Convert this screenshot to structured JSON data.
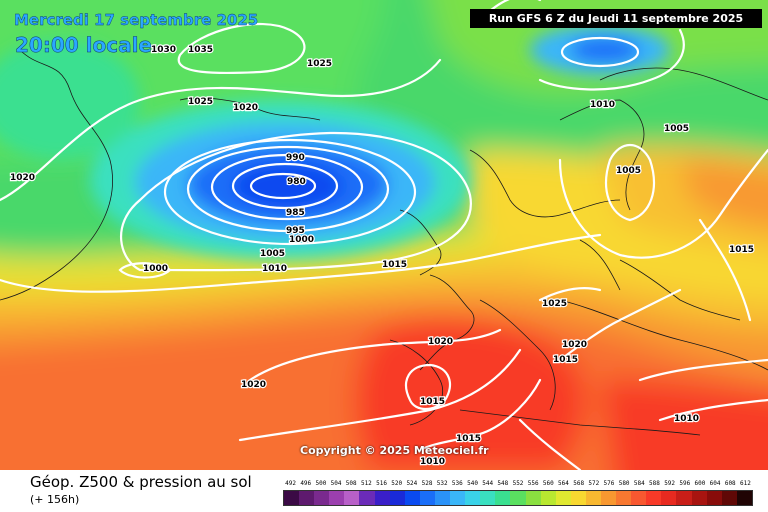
{
  "header": {
    "date": "Mercredi 17 septembre 2025",
    "time": "20:00 locale",
    "run": "Run GFS 6 Z du Jeudi 11 septembre 2025"
  },
  "copyright": "Copyright © 2025 Meteociel.fr",
  "footer": {
    "title": "Géop. Z500 & pression au sol",
    "subtitle": "(+ 156h)"
  },
  "legend": {
    "values": [
      "492",
      "496",
      "500",
      "504",
      "508",
      "512",
      "516",
      "520",
      "524",
      "528",
      "532",
      "536",
      "540",
      "544",
      "548",
      "552",
      "556",
      "560",
      "564",
      "568",
      "572",
      "576",
      "580",
      "584",
      "588",
      "592",
      "596",
      "600",
      "604",
      "608",
      "612"
    ],
    "colors": [
      "#3b0a45",
      "#5e1a6e",
      "#7a2a8e",
      "#9b3fae",
      "#b860c8",
      "#6b2bb8",
      "#3a1fc8",
      "#1a2ad8",
      "#0a4af0",
      "#1a6ef8",
      "#2a92f8",
      "#3ab6f8",
      "#3ad2e8",
      "#3ae0c0",
      "#3ae090",
      "#5ae060",
      "#8ae040",
      "#b8e830",
      "#e0e830",
      "#f8d830",
      "#f8b830",
      "#f89830",
      "#f87830",
      "#f85830",
      "#f83a28",
      "#e82a20",
      "#c81e18",
      "#a81410",
      "#880c0a",
      "#600806",
      "#200404"
    ]
  },
  "isobar_labels": [
    "1030",
    "1035",
    "1025",
    "1025",
    "1020",
    "1020",
    "990",
    "980",
    "985",
    "995",
    "1000",
    "1005",
    "1010",
    "1000",
    "1015",
    "1025",
    "1020",
    "1015",
    "1020",
    "1015",
    "1015",
    "1010",
    "1020",
    "1010",
    "1005",
    "1005",
    "1015",
    "1010"
  ]
}
